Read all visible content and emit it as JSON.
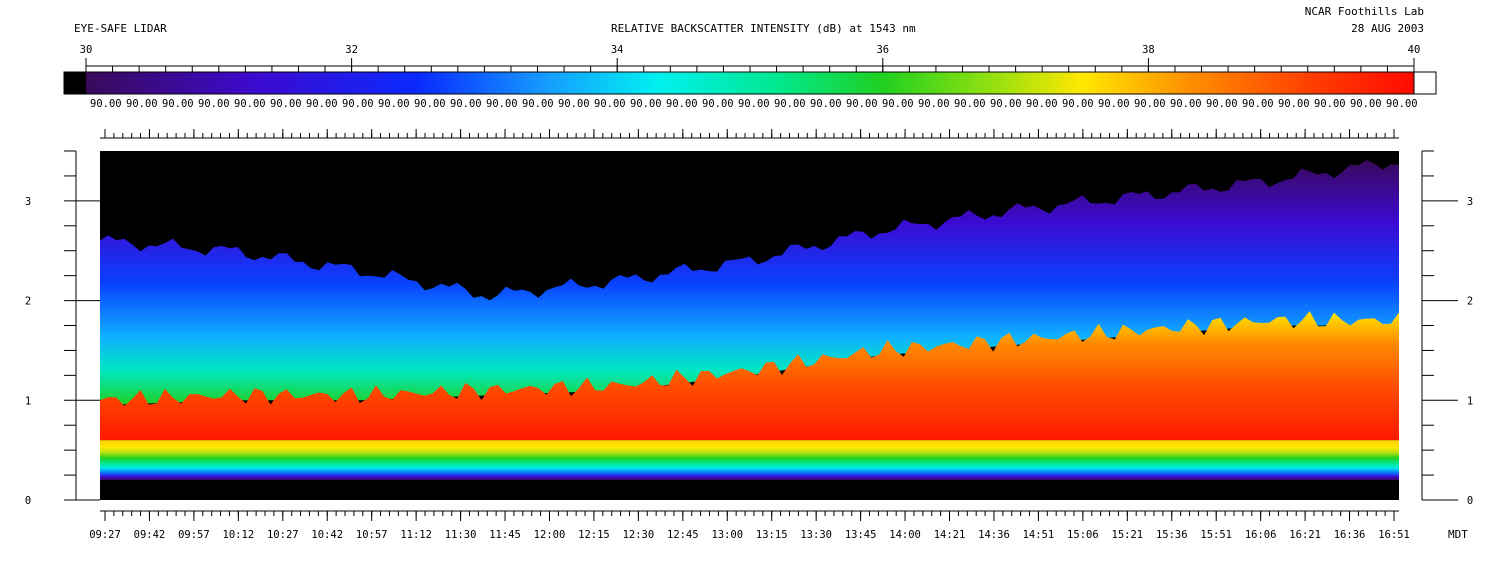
{
  "header": {
    "left_title": "EYE-SAFE LIDAR",
    "center_title": "RELATIVE BACKSCATTER INTENSITY (dB) at 1543 nm",
    "org": "NCAR Foothills Lab",
    "date": "28 AUG 2003"
  },
  "colors": {
    "background": "#000000",
    "low": "#3a0a5a",
    "mid_low": "#0a2aff",
    "mid": "#00e8e8",
    "mid_high": "#20d020",
    "high_mid": "#ffe800",
    "high": "#ff1a00"
  },
  "chart_data": {
    "type": "heatmap",
    "title": "RELATIVE BACKSCATTER INTENSITY (dB) at 1543 nm",
    "colorbar": {
      "range": [
        30,
        40
      ],
      "major_ticks": [
        "30",
        "32",
        "34",
        "36",
        "38",
        "40"
      ],
      "bin_labels": [
        "90.00",
        "90.00",
        "90.00",
        "90.00",
        "90.00",
        "90.00",
        "90.00",
        "90.00",
        "90.00",
        "90.00",
        "90.00",
        "90.00",
        "90.00",
        "90.00",
        "90.00",
        "90.00",
        "90.00",
        "90.00",
        "90.00",
        "90.00",
        "90.00",
        "90.00",
        "90.00",
        "90.00",
        "90.00",
        "90.00",
        "90.00",
        "90.00",
        "90.00",
        "90.00",
        "90.00",
        "90.00",
        "90.00",
        "90.00",
        "90.00",
        "90.00",
        "90.00"
      ]
    },
    "x_ticks": [
      "09:27",
      "09:42",
      "09:57",
      "10:12",
      "10:27",
      "10:42",
      "10:57",
      "11:12",
      "11:30",
      "11:45",
      "12:00",
      "12:15",
      "12:30",
      "12:45",
      "13:00",
      "13:15",
      "13:30",
      "13:45",
      "14:00",
      "14:21",
      "14:36",
      "14:51",
      "15:06",
      "15:21",
      "15:36",
      "15:51",
      "16:06",
      "16:21",
      "16:36",
      "16:51"
    ],
    "x_unit": "MDT",
    "y_ticks": [
      "0",
      "1",
      "2",
      "3"
    ],
    "ylim": [
      0,
      3.5
    ],
    "layers": {
      "time_fraction": [
        0,
        0.1,
        0.2,
        0.3,
        0.4,
        0.5,
        0.6,
        0.7,
        0.8,
        0.9,
        1.0
      ],
      "mixed_layer_top": [
        1.0,
        1.05,
        1.05,
        1.1,
        1.15,
        1.3,
        1.5,
        1.6,
        1.7,
        1.8,
        1.8
      ],
      "aerosol_top": [
        2.6,
        2.5,
        2.3,
        2.05,
        2.2,
        2.4,
        2.7,
        2.9,
        3.05,
        3.2,
        3.4
      ],
      "near_field_band": [
        0.2,
        0.6
      ]
    }
  }
}
